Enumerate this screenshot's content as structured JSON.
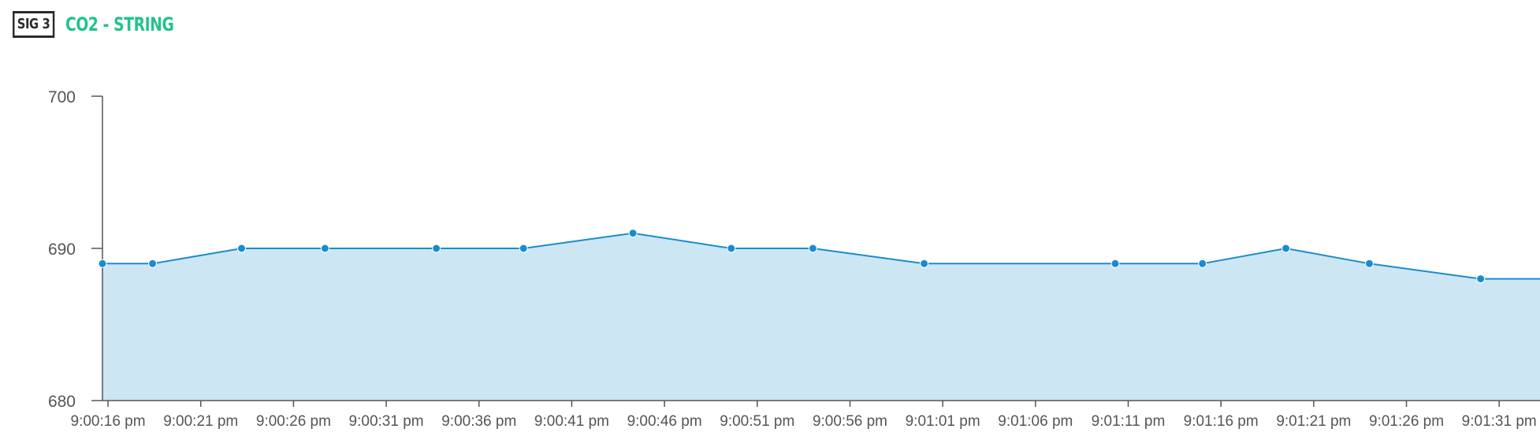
{
  "header": {
    "badge": "SIG 3",
    "title": "CO2 - STRING"
  },
  "colors": {
    "line": "#1a8ccc",
    "fill": "#cde6f4",
    "title": "#21c38b",
    "axis": "#555555"
  },
  "chart_data": {
    "type": "area",
    "title": "",
    "xlabel": "",
    "ylabel": "",
    "ylim": [
      680,
      700
    ],
    "y_ticks": [
      "680",
      "690",
      "700"
    ],
    "x_ticks": [
      "9:00:16 pm",
      "9:00:21 pm",
      "9:00:26 pm",
      "9:00:31 pm",
      "9:00:36 pm",
      "9:00:41 pm",
      "9:00:46 pm",
      "9:00:51 pm",
      "9:00:56 pm",
      "9:01:01 pm",
      "9:01:06 pm",
      "9:01:11 pm",
      "9:01:16 pm",
      "9:01:21 pm",
      "9:01:26 pm",
      "9:01:31 pm"
    ],
    "grid": false,
    "legend": "none",
    "series": [
      {
        "x": [
          "9:00:15.7 pm",
          "9:00:18.4 pm",
          "9:00:23.2 pm",
          "9:00:27.7 pm",
          "9:00:33.7 pm",
          "9:00:38.4 pm",
          "9:00:44.3 pm",
          "9:00:49.6 pm",
          "9:00:54.0 pm",
          "9:01:00.0 pm",
          "9:01:10.3 pm",
          "9:01:15.0 pm",
          "9:01:19.5 pm",
          "9:01:24.0 pm",
          "9:01:30.0 pm",
          "9:01:34.5 pm"
        ],
        "values": [
          689,
          689,
          690,
          690,
          690,
          690,
          691,
          690,
          690,
          689,
          689,
          689,
          690,
          689,
          688,
          688
        ]
      }
    ]
  }
}
